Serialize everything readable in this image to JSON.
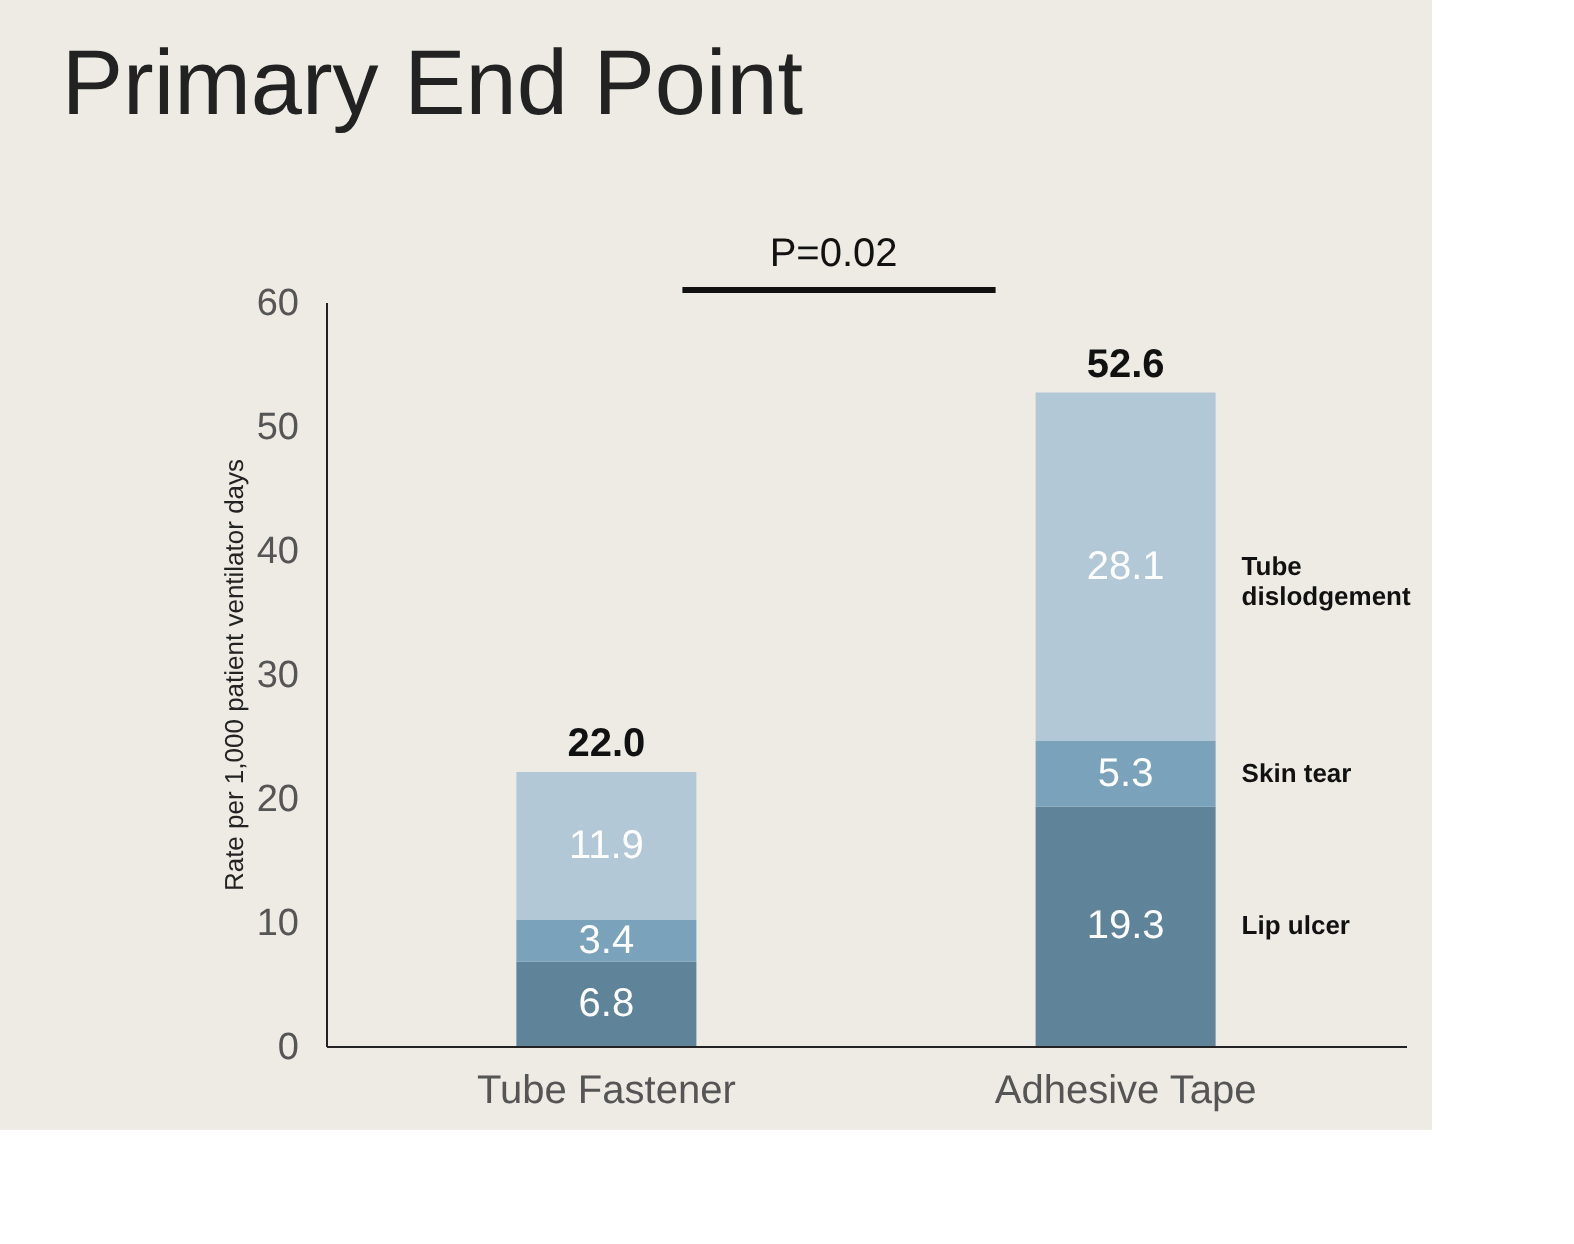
{
  "chart_data": {
    "type": "bar",
    "title": "Primary End Point",
    "ylabel": "Rate per 1,000 patient ventilator days",
    "categories": [
      "Tube Fastener",
      "Adhesive Tape"
    ],
    "stacked": true,
    "series": [
      {
        "name": "Lip ulcer",
        "color": "#5f8398",
        "values": [
          6.8,
          19.3
        ]
      },
      {
        "name": "Skin tear",
        "color": "#7aa2bb",
        "values": [
          3.4,
          5.3
        ]
      },
      {
        "name": "Tube dislodgement",
        "color": "#b3c8d7",
        "values": [
          11.9,
          28.1
        ]
      }
    ],
    "totals": [
      "22.0",
      "52.6"
    ],
    "data_labels": true,
    "annotations": [
      "P=0.02"
    ],
    "ylim": [
      0,
      60
    ],
    "yticks": [
      0,
      10,
      20,
      30,
      40,
      50,
      60
    ],
    "grid": false
  }
}
